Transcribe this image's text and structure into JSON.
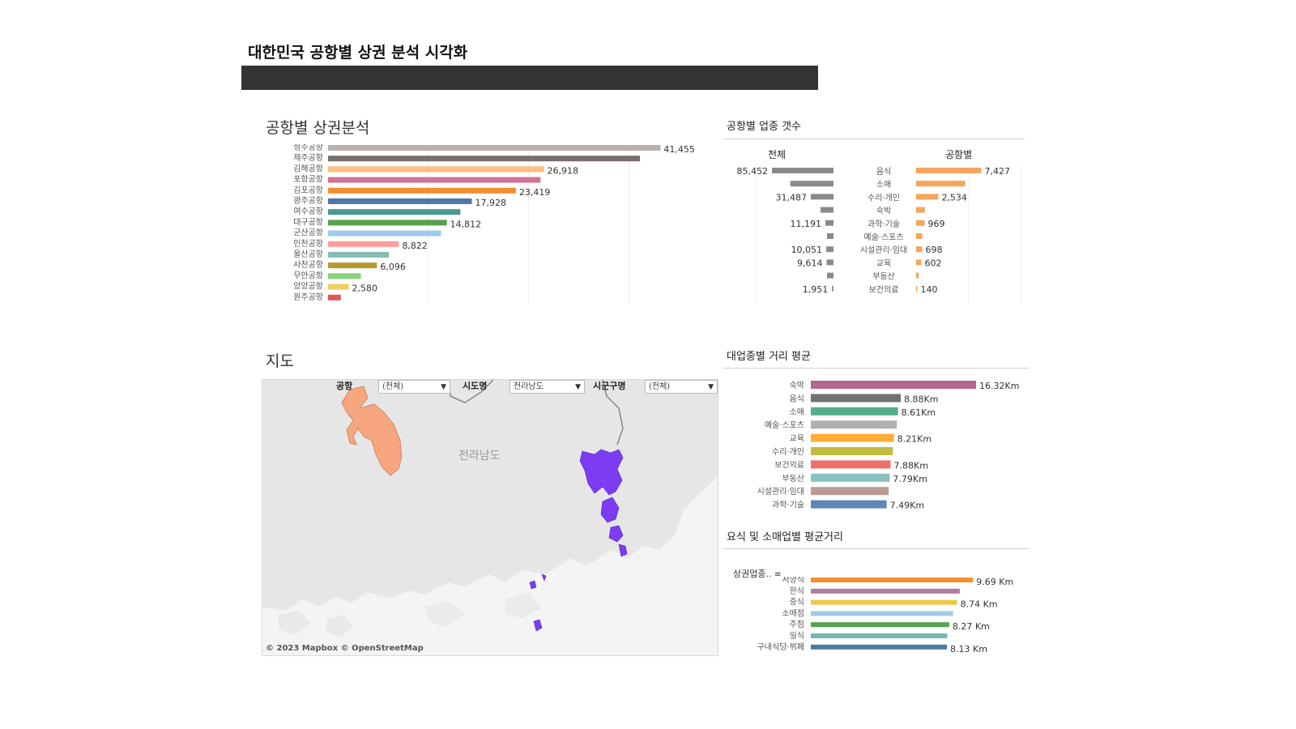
{
  "page": {
    "title": "대한민국 공항별 상권 분석 시각화"
  },
  "colors": {
    "header_bar": "#333333",
    "region_lightgray": "#e3e3e3",
    "airport_salmon": "#f7a680",
    "airport_purple": "#7b3cf2"
  },
  "chart_data": [
    {
      "id": "airport_bar",
      "type": "bar",
      "title": "공항별 상권분석",
      "orientation": "horizontal",
      "categories": [
        "청주공항",
        "제주공항",
        "김해공항",
        "포항공항",
        "김포공항",
        "광주공항",
        "여수공항",
        "대구공항",
        "군산공항",
        "인천공항",
        "울산공항",
        "사천공항",
        "무안공항",
        "양양공항",
        "원주공항"
      ],
      "values": [
        41455,
        38900,
        26918,
        26500,
        23419,
        17928,
        16500,
        14812,
        14100,
        8822,
        7600,
        6096,
        4100,
        2580,
        1600
      ],
      "labels": [
        "41,455",
        "",
        "26,918",
        "",
        "23,419",
        "17,928",
        "",
        "14,812",
        "",
        "8,822",
        "",
        "6,096",
        "",
        "2,580",
        ""
      ],
      "colors": [
        "#bab0ac",
        "#79706e",
        "#ffbe7d",
        "#d37295",
        "#f28e2b",
        "#4e79a7",
        "#499894",
        "#59a14f",
        "#a0cbe8",
        "#ff9d9a",
        "#86bcb6",
        "#b6992d",
        "#8cd17d",
        "#f1ce63",
        "#e15759"
      ],
      "xlim": [
        0,
        50000
      ]
    },
    {
      "id": "total_counts",
      "type": "bar",
      "title": "공항별 업종 갯수",
      "subtitle": "전체",
      "orientation": "horizontal",
      "direction": "right-to-left",
      "values": [
        85452,
        60000,
        31487,
        18000,
        11191,
        9000,
        10051,
        9614,
        9000,
        1951
      ],
      "labels": [
        "85,452",
        "",
        "31,487",
        "",
        "11,191",
        "",
        "10,051",
        "9,614",
        "",
        "1,951"
      ],
      "color": "#8a8a8a",
      "xlim": [
        0,
        90000
      ]
    },
    {
      "id": "airport_industry_counts",
      "type": "bar",
      "subtitle": "공항별",
      "orientation": "horizontal",
      "categories": [
        "음식",
        "소매",
        "수리·개인",
        "숙박",
        "과학·기술",
        "예술·스포츠",
        "시설관리·임대",
        "교육",
        "부동산",
        "보건의료"
      ],
      "values": [
        7427,
        5600,
        2534,
        1000,
        969,
        700,
        698,
        602,
        300,
        140
      ],
      "labels": [
        "7,427",
        "",
        "2,534",
        "",
        "969",
        "",
        "698",
        "602",
        "",
        "140"
      ],
      "color": "#f5a55c",
      "xlim": [
        0,
        12000
      ]
    },
    {
      "id": "industry_distance",
      "type": "bar",
      "title": "대업종별 거리 평균",
      "orientation": "horizontal",
      "categories": [
        "숙박",
        "음식",
        "소매",
        "예술·스포츠",
        "교육",
        "수리·개인",
        "보건의료",
        "부동산",
        "시설관리·임대",
        "과학·기술"
      ],
      "values": [
        16.32,
        8.88,
        8.61,
        8.5,
        8.21,
        8.1,
        7.88,
        7.79,
        7.7,
        7.49
      ],
      "labels": [
        "16.32Km",
        "8.88Km",
        "8.61Km",
        "",
        "8.21Km",
        "",
        "7.88Km",
        "7.79Km",
        "",
        "7.49Km"
      ],
      "colors": [
        "#b2688f",
        "#727272",
        "#55ad89",
        "#b0b0b0",
        "#ffae34",
        "#c3bc3f",
        "#ef6f6a",
        "#88c0c4",
        "#bb9c92",
        "#6087b6"
      ],
      "xlim": [
        0,
        20
      ]
    },
    {
      "id": "food_retail_distance",
      "type": "bar",
      "title": "요식 및 소매업별 평균거리",
      "axis_label": "상권업종..",
      "orientation": "horizontal",
      "categories": [
        "서양식",
        "한식",
        "중식",
        "소매점",
        "주점",
        "일식",
        "구내식당·뷔페"
      ],
      "values": [
        9.69,
        8.9,
        8.74,
        8.5,
        8.27,
        8.15,
        8.13
      ],
      "labels": [
        "9.69 Km",
        "",
        "8.74 Km",
        "",
        "8.27 Km",
        "",
        "8.13 Km"
      ],
      "colors": [
        "#f28e2b",
        "#b07aa1",
        "#edc948",
        "#a0cbe8",
        "#59a14f",
        "#76b7b2",
        "#4e79a7"
      ],
      "xlim": [
        0,
        12
      ]
    }
  ],
  "map": {
    "title": "지도",
    "filters": [
      {
        "label": "공항",
        "value": "(전체)"
      },
      {
        "label": "시도명",
        "value": "전라남도"
      },
      {
        "label": "시군구명",
        "value": "(전체)"
      }
    ],
    "region_label": "전라남도",
    "attribution": "© 2023 Mapbox © OpenStreetMap"
  }
}
